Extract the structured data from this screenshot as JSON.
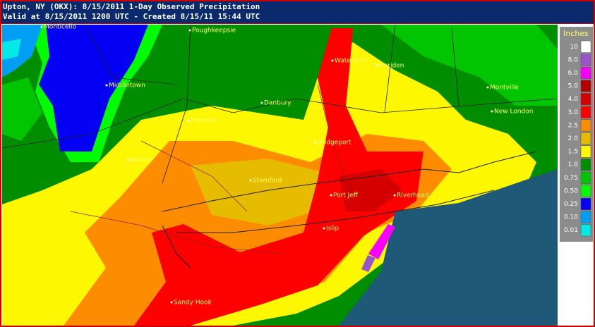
{
  "header": {
    "title": "Upton, NY (OKX): 8/15/2011 1-Day Observed Precipitation",
    "subtitle": "Valid at 8/15/2011 1200 UTC - Created 8/15/11 15:44 UTC"
  },
  "legend": {
    "title": "Inches",
    "items": [
      {
        "label": "10",
        "color": "#ffffff"
      },
      {
        "label": "8.0",
        "color": "#9954c9"
      },
      {
        "label": "6.0",
        "color": "#f800fd"
      },
      {
        "label": "5.0",
        "color": "#b00000"
      },
      {
        "label": "4.0",
        "color": "#d40000"
      },
      {
        "label": "3.0",
        "color": "#fd0000"
      },
      {
        "label": "2.5",
        "color": "#fd8c00"
      },
      {
        "label": "2.0",
        "color": "#e5bc00"
      },
      {
        "label": "1.5",
        "color": "#fdf802"
      },
      {
        "label": "1.0",
        "color": "#008e00"
      },
      {
        "label": "0.75",
        "color": "#01c501"
      },
      {
        "label": "0.50",
        "color": "#02fd02"
      },
      {
        "label": "0.25",
        "color": "#0300f4"
      },
      {
        "label": "0.10",
        "color": "#019ff4"
      },
      {
        "label": "0.01",
        "color": "#04e9e7"
      }
    ]
  },
  "places": [
    "Monticello",
    "Poughkeepsie",
    "Waterbury",
    "Meriden",
    "Middletown",
    "Montville",
    "Danbury",
    "New London",
    "Peekskill",
    "Bridgeport",
    "Milford",
    "Stamford",
    "Port Jeff",
    "Riverhead",
    "Islip",
    "Sandy Hook"
  ]
}
